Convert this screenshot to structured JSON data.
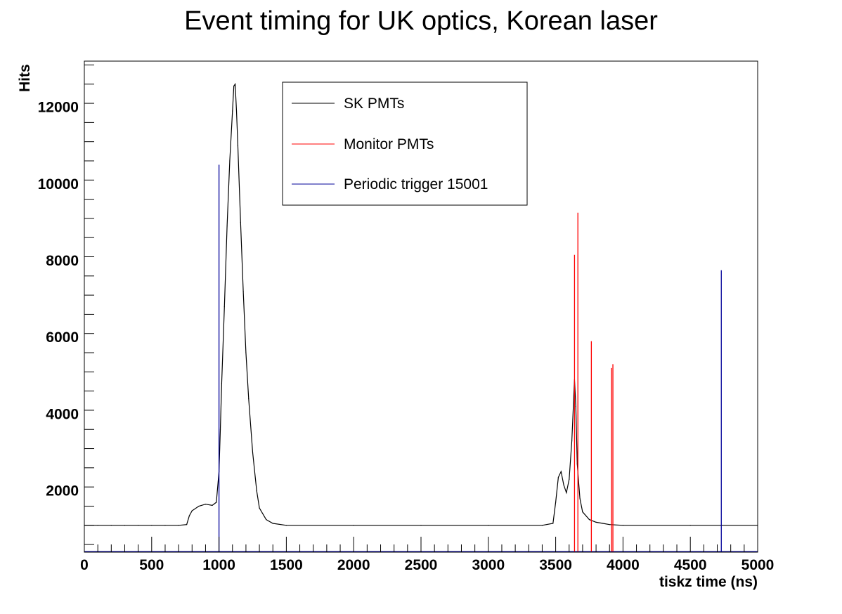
{
  "chart_data": {
    "type": "line",
    "title": "Event timing for UK optics, Korean laser",
    "xlabel": "tiskz time (ns)",
    "ylabel": "Hits",
    "xlim": [
      0,
      5000
    ],
    "ylim": [
      400,
      13200
    ],
    "xticks": [
      0,
      500,
      1000,
      1500,
      2000,
      2500,
      3000,
      3500,
      4000,
      4500,
      5000
    ],
    "yticks": [
      2000,
      4000,
      6000,
      8000,
      10000,
      12000
    ],
    "xtick_labels": [
      "0",
      "500",
      "1000",
      "1500",
      "2000",
      "2500",
      "3000",
      "3500",
      "4000",
      "4500",
      "5000"
    ],
    "ytick_labels": [
      "2000",
      "4000",
      "6000",
      "8000",
      "10000",
      "12000"
    ],
    "grid": false,
    "legend_position": "top-center",
    "series": [
      {
        "name": "SK PMTs",
        "color": "#000000",
        "x": [
          0,
          100,
          200,
          300,
          400,
          500,
          600,
          700,
          760,
          780,
          800,
          850,
          900,
          950,
          980,
          1000,
          1010,
          1020,
          1040,
          1060,
          1080,
          1100,
          1110,
          1120,
          1130,
          1140,
          1160,
          1180,
          1200,
          1220,
          1250,
          1280,
          1300,
          1350,
          1400,
          1500,
          2000,
          2500,
          3000,
          3400,
          3480,
          3500,
          3520,
          3540,
          3560,
          3580,
          3600,
          3620,
          3640,
          3650,
          3660,
          3680,
          3700,
          3750,
          3800,
          3850,
          3900,
          4000,
          4500,
          5000
        ],
        "y": [
          1100,
          1100,
          1100,
          1100,
          1100,
          1100,
          1100,
          1100,
          1120,
          1350,
          1480,
          1600,
          1650,
          1620,
          1700,
          2500,
          3600,
          4800,
          6800,
          8900,
          10600,
          11900,
          12550,
          12600,
          11900,
          11000,
          9000,
          7200,
          5600,
          4400,
          3000,
          2000,
          1550,
          1250,
          1150,
          1100,
          1100,
          1100,
          1100,
          1100,
          1150,
          1700,
          2350,
          2500,
          2150,
          1950,
          2300,
          3300,
          4900,
          4200,
          2700,
          1800,
          1450,
          1250,
          1180,
          1150,
          1120,
          1100,
          1100,
          1100
        ]
      },
      {
        "name": "Monitor PMTs",
        "color": "#ff0000",
        "spikes": [
          {
            "x": 3640,
            "y": 8150
          },
          {
            "x": 3665,
            "y": 9250
          },
          {
            "x": 3765,
            "y": 5900
          },
          {
            "x": 3915,
            "y": 5200
          },
          {
            "x": 3925,
            "y": 5300
          }
        ]
      },
      {
        "name": "Periodic trigger 15001",
        "color": "#000099",
        "spikes": [
          {
            "x": 1000,
            "y": 10500
          },
          {
            "x": 4730,
            "y": 7750
          }
        ]
      }
    ]
  }
}
